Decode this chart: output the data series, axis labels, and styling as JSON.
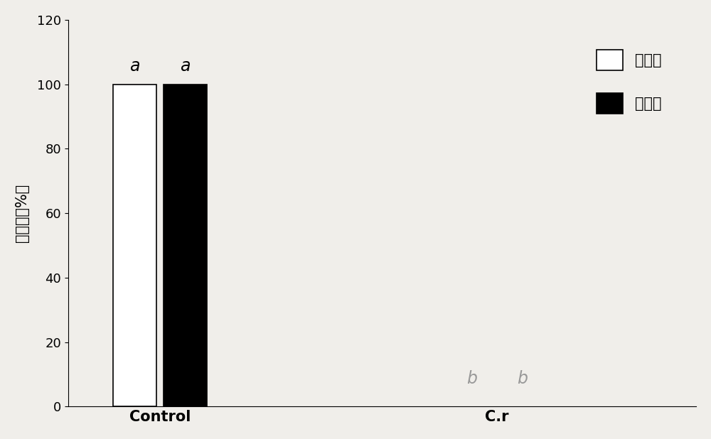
{
  "groups": [
    "Control",
    "C.r"
  ],
  "series": [
    {
      "name": "青霉病",
      "color": "white",
      "edgecolor": "black",
      "values": [
        100,
        0
      ]
    },
    {
      "name": "灰霉病",
      "color": "black",
      "edgecolor": "black",
      "values": [
        100,
        0
      ]
    }
  ],
  "bar_width": 0.28,
  "inter_bar_gap": 0.05,
  "group_centers": [
    1.0,
    3.2
  ],
  "ylabel": "发病率（%）",
  "ylim": [
    0,
    120
  ],
  "yticks": [
    0,
    20,
    40,
    60,
    80,
    100,
    120
  ],
  "annotation_control_1": {
    "text": "a",
    "y": 103,
    "color": "black"
  },
  "annotation_control_2": {
    "text": "a",
    "y": 103,
    "color": "black"
  },
  "annotation_cr_1": {
    "text": "b",
    "y": 6,
    "color": "#999999"
  },
  "annotation_cr_2": {
    "text": "b",
    "y": 6,
    "color": "#999999"
  },
  "legend_labels": [
    "青霉病",
    "灰霉病"
  ],
  "legend_colors": [
    "white",
    "black"
  ],
  "legend_edgecolors": [
    "black",
    "black"
  ],
  "background_color": "#f0eeea",
  "plot_bg_color": "#f0eeea",
  "ylabel_fontsize": 15,
  "tick_fontsize": 13,
  "annotation_fontsize": 17,
  "legend_fontsize": 15,
  "group_label_fontsize": 15
}
